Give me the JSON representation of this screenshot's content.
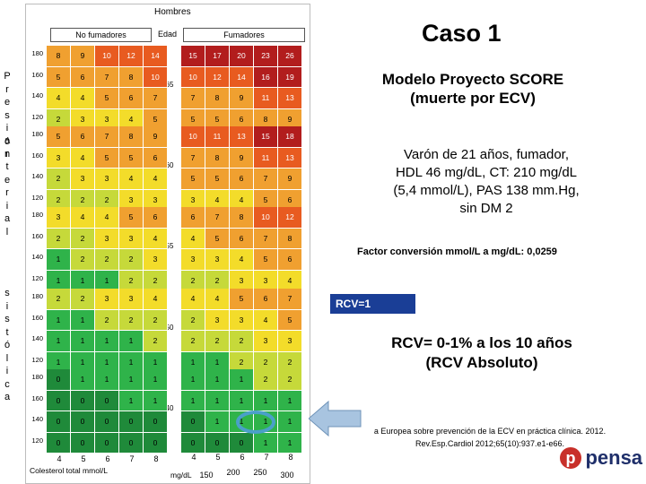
{
  "slide_title": "Caso 1",
  "chart": {
    "top_label": "Hombres",
    "group_nonsmokers": "No fumadores",
    "age_header": "Edad",
    "group_smokers": "Fumadores",
    "side_words": [
      "Presión",
      "arterial",
      "sistólica"
    ],
    "sbp_levels": [
      "180",
      "160",
      "140",
      "120"
    ],
    "age_bands": [
      {
        "age": "65",
        "nonsmokers": [
          [
            "8",
            "9",
            "10",
            "12",
            "14"
          ],
          [
            "5",
            "6",
            "7",
            "8",
            "10"
          ],
          [
            "4",
            "4",
            "5",
            "6",
            "7"
          ],
          [
            "2",
            "3",
            "3",
            "4",
            "5"
          ]
        ],
        "smokers": [
          [
            "15",
            "17",
            "20",
            "23",
            "26"
          ],
          [
            "10",
            "12",
            "14",
            "16",
            "19"
          ],
          [
            "7",
            "8",
            "9",
            "11",
            "13"
          ],
          [
            "5",
            "5",
            "6",
            "8",
            "9"
          ]
        ]
      },
      {
        "age": "60",
        "nonsmokers": [
          [
            "5",
            "6",
            "7",
            "8",
            "9"
          ],
          [
            "3",
            "4",
            "5",
            "5",
            "6"
          ],
          [
            "2",
            "3",
            "3",
            "4",
            "4"
          ],
          [
            "2",
            "2",
            "2",
            "3",
            "3"
          ]
        ],
        "smokers": [
          [
            "10",
            "11",
            "13",
            "15",
            "18"
          ],
          [
            "7",
            "8",
            "9",
            "11",
            "13"
          ],
          [
            "5",
            "5",
            "6",
            "7",
            "9"
          ],
          [
            "3",
            "4",
            "4",
            "5",
            "6"
          ]
        ]
      },
      {
        "age": "55",
        "nonsmokers": [
          [
            "3",
            "4",
            "4",
            "5",
            "6"
          ],
          [
            "2",
            "2",
            "3",
            "3",
            "4"
          ],
          [
            "1",
            "2",
            "2",
            "2",
            "3"
          ],
          [
            "1",
            "1",
            "1",
            "2",
            "2"
          ]
        ],
        "smokers": [
          [
            "6",
            "7",
            "8",
            "10",
            "12"
          ],
          [
            "4",
            "5",
            "6",
            "7",
            "8"
          ],
          [
            "3",
            "3",
            "4",
            "5",
            "6"
          ],
          [
            "2",
            "2",
            "3",
            "3",
            "4"
          ]
        ]
      },
      {
        "age": "50",
        "nonsmokers": [
          [
            "2",
            "2",
            "3",
            "3",
            "4"
          ],
          [
            "1",
            "1",
            "2",
            "2",
            "2"
          ],
          [
            "1",
            "1",
            "1",
            "1",
            "2"
          ],
          [
            "1",
            "1",
            "1",
            "1",
            "1"
          ]
        ],
        "smokers": [
          [
            "4",
            "4",
            "5",
            "6",
            "7"
          ],
          [
            "2",
            "3",
            "3",
            "4",
            "5"
          ],
          [
            "2",
            "2",
            "2",
            "3",
            "3"
          ],
          [
            "1",
            "1",
            "2",
            "2",
            "2"
          ]
        ]
      },
      {
        "age": "40",
        "nonsmokers": [
          [
            "0",
            "1",
            "1",
            "1",
            "1"
          ],
          [
            "0",
            "0",
            "0",
            "1",
            "1"
          ],
          [
            "0",
            "0",
            "0",
            "0",
            "0"
          ],
          [
            "0",
            "0",
            "0",
            "0",
            "0"
          ]
        ],
        "smokers": [
          [
            "1",
            "1",
            "1",
            "2",
            "2"
          ],
          [
            "1",
            "1",
            "1",
            "1",
            "1"
          ],
          [
            "0",
            "1",
            "1",
            "1",
            "1"
          ],
          [
            "0",
            "0",
            "0",
            "1",
            "1"
          ]
        ]
      }
    ],
    "chol_ticks_mmol": [
      "4",
      "5",
      "6",
      "7",
      "8"
    ],
    "chol_label_mmol": "Colesterol total mmol/L",
    "chol_ticks_mg": [
      "4",
      "5",
      "6",
      "7",
      "8"
    ],
    "chol_ticks_mg_prefix": "mg/dL",
    "chol_values_mg": [
      "150",
      "200",
      "250",
      "300"
    ]
  },
  "model_title": "Modelo Proyecto SCORE\n(muerte por ECV)",
  "case_text": "Varón de 21 años, fumador,\nHDL 46 mg/dL, CT: 210 mg/dL\n(5,4 mmol/L), PAS 138 mm.Hg,\nsin DM 2",
  "conversion": "Factor conversión mmol/L a mg/dL: 0,0259",
  "rcv_badge": "RCV=1",
  "rcv_result": "RCV= 0-1% a los 10 años\n(RCV Absoluto)",
  "citation": "a Europea sobre prevención de la ECV en práctica clínica. 2012.\nRev.Esp.Cardiol 2012;65(10):937.e1-e66.",
  "logo_text": "pensa",
  "colors": {
    "risk_0": "#1f8a3a",
    "risk_1": "#2fb34a",
    "risk_2": "#c6d93a",
    "risk_3_4": "#f3dc2a",
    "risk_5_9": "#f0a030",
    "risk_10_14": "#e85b20",
    "risk_15plus": "#b21d1d",
    "highlight_circle": "#4aa0c8",
    "arrow": "#a8c4e0",
    "rcv_badge_bg": "#1a3e96"
  }
}
